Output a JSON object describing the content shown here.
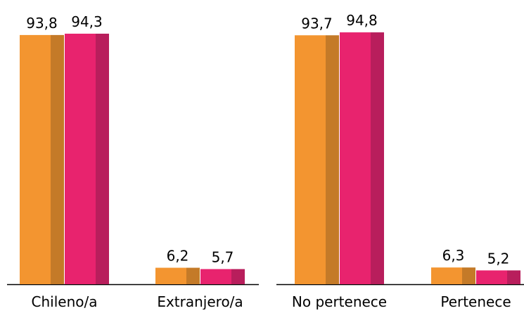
{
  "chart_data": [
    {
      "type": "bar",
      "categories": [
        "Chileno/a",
        "Extranjero/a"
      ],
      "series": [
        {
          "color": "#F39530",
          "shade": "#C47A28",
          "values": [
            93.8,
            6.2
          ],
          "labels": [
            "93,8",
            "6,2"
          ]
        },
        {
          "color": "#E8236E",
          "shade": "#B81E5C",
          "values": [
            94.3,
            5.7
          ],
          "labels": [
            "94,3",
            "5,7"
          ]
        }
      ],
      "ylim": [
        0,
        100
      ],
      "grid": false,
      "legend": "none"
    },
    {
      "type": "bar",
      "categories": [
        "No pertenece",
        "Pertenece"
      ],
      "series": [
        {
          "color": "#F39530",
          "shade": "#C47A28",
          "values": [
            93.7,
            6.3
          ],
          "labels": [
            "93,7",
            "6,3"
          ]
        },
        {
          "color": "#E8236E",
          "shade": "#B81E5C",
          "values": [
            94.8,
            5.2
          ],
          "labels": [
            "94,8",
            "5,2"
          ]
        }
      ],
      "ylim": [
        0,
        100
      ],
      "grid": false,
      "legend": "none"
    }
  ]
}
